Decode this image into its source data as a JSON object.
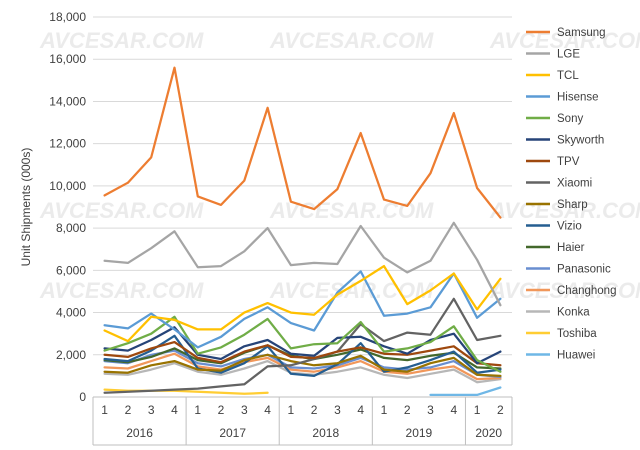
{
  "chart_data": {
    "type": "line",
    "title": "",
    "xlabel": "",
    "ylabel": "Unit Shipments (000s)",
    "ylim": [
      0,
      18000
    ],
    "yticks": [
      "0",
      "2,000",
      "4,000",
      "6,000",
      "8,000",
      "10,000",
      "12,000",
      "14,000",
      "16,000",
      "18,000"
    ],
    "grid": true,
    "legend_position": "right",
    "watermark": "AVCESAR.COM",
    "categories": [
      "2016 Q1",
      "2016 Q2",
      "2016 Q3",
      "2016 Q4",
      "2017 Q1",
      "2017 Q2",
      "2017 Q3",
      "2017 Q4",
      "2018 Q1",
      "2018 Q2",
      "2018 Q3",
      "2018 Q4",
      "2019 Q1",
      "2019 Q2",
      "2019 Q3",
      "2019 Q4",
      "2020 Q1",
      "2020 Q2"
    ],
    "quarter_labels": [
      "1",
      "2",
      "3",
      "4",
      "1",
      "2",
      "3",
      "4",
      "1",
      "2",
      "3",
      "4",
      "1",
      "2",
      "3",
      "4",
      "1",
      "2"
    ],
    "years": [
      {
        "label": "2016",
        "span": 4
      },
      {
        "label": "2017",
        "span": 4
      },
      {
        "label": "2018",
        "span": 4
      },
      {
        "label": "2019",
        "span": 4
      },
      {
        "label": "2020",
        "span": 2
      }
    ],
    "series": [
      {
        "name": "Samsung",
        "color": "#ed7d31",
        "values": [
          9550,
          10150,
          11350,
          15600,
          9500,
          9100,
          10250,
          13700,
          9250,
          8900,
          9850,
          12500,
          9350,
          9050,
          10600,
          13450,
          9900,
          8500
        ]
      },
      {
        "name": "LGE",
        "color": "#a5a5a5",
        "values": [
          6450,
          6350,
          7050,
          7850,
          6150,
          6200,
          6900,
          8000,
          6250,
          6350,
          6300,
          8100,
          6600,
          5900,
          6450,
          8250,
          6500,
          4350
        ]
      },
      {
        "name": "TCL",
        "color": "#ffc000",
        "values": [
          3150,
          2650,
          3800,
          3650,
          3200,
          3200,
          4000,
          4450,
          4000,
          3900,
          4850,
          5500,
          6200,
          4400,
          5050,
          5850,
          4150,
          5600
        ]
      },
      {
        "name": "Hisense",
        "color": "#5b9bd5",
        "values": [
          3400,
          3250,
          3950,
          3200,
          2350,
          2850,
          3700,
          4250,
          3500,
          3150,
          4950,
          5950,
          3850,
          3950,
          4250,
          5850,
          3750,
          4650
        ]
      },
      {
        "name": "Sony",
        "color": "#70ad47",
        "values": [
          2200,
          2550,
          3000,
          3800,
          2050,
          2350,
          2950,
          3700,
          2300,
          2500,
          2550,
          3550,
          2150,
          2300,
          2600,
          3350,
          1750,
          1200
        ]
      },
      {
        "name": "Skyworth",
        "color": "#264478",
        "values": [
          2300,
          2200,
          2700,
          3300,
          2000,
          1800,
          2400,
          2700,
          2050,
          1950,
          2800,
          2850,
          2400,
          2050,
          2700,
          3000,
          1600,
          2150
        ]
      },
      {
        "name": "TPV",
        "color": "#9e480e",
        "values": [
          2000,
          1900,
          2300,
          2600,
          1850,
          1650,
          2150,
          2450,
          1900,
          1850,
          2150,
          2350,
          2050,
          2000,
          2200,
          2400,
          1600,
          1500
        ]
      },
      {
        "name": "Xiaomi",
        "color": "#636363",
        "values": [
          200,
          250,
          300,
          350,
          400,
          500,
          600,
          1450,
          1500,
          1800,
          2150,
          3450,
          2650,
          3050,
          2950,
          4650,
          2700,
          2900
        ]
      },
      {
        "name": "Sharp",
        "color": "#997300",
        "values": [
          1200,
          1150,
          1500,
          1700,
          1300,
          1250,
          1750,
          2000,
          1700,
          1500,
          1600,
          1950,
          1300,
          1200,
          1600,
          1850,
          1050,
          1000
        ]
      },
      {
        "name": "Vizio",
        "color": "#255e91",
        "values": [
          1800,
          1700,
          2200,
          2900,
          1350,
          1150,
          1600,
          2400,
          1100,
          1000,
          1550,
          2550,
          1200,
          1400,
          1750,
          2150,
          1150,
          1300
        ]
      },
      {
        "name": "Haier",
        "color": "#43682b",
        "values": [
          1750,
          1650,
          1900,
          2300,
          1750,
          1600,
          2100,
          2450,
          1950,
          1800,
          2000,
          2250,
          1850,
          1750,
          1950,
          2100,
          1400,
          1350
        ]
      },
      {
        "name": "Panasonic",
        "color": "#698ed0",
        "values": [
          1700,
          1600,
          2000,
          2200,
          1600,
          1450,
          1800,
          2000,
          1400,
          1350,
          1500,
          1850,
          1400,
          1300,
          1400,
          1700,
          1050,
          950
        ]
      },
      {
        "name": "Changhong",
        "color": "#f1975a",
        "values": [
          1400,
          1350,
          1700,
          2050,
          1450,
          1300,
          1650,
          1850,
          1300,
          1200,
          1400,
          1700,
          1200,
          1100,
          1300,
          1450,
          850,
          900
        ]
      },
      {
        "name": "Konka",
        "color": "#b7b7b7",
        "values": [
          1100,
          1050,
          1300,
          1600,
          1200,
          1050,
          1350,
          1700,
          1150,
          1050,
          1200,
          1400,
          1050,
          900,
          1100,
          1300,
          700,
          850
        ]
      },
      {
        "name": "Toshiba",
        "color": "#ffcd33",
        "values": [
          350,
          300,
          300,
          300,
          250,
          200,
          150,
          200,
          null,
          null,
          null,
          null,
          null,
          null,
          null,
          null,
          null,
          null
        ]
      },
      {
        "name": "Huawei",
        "color": "#6fb7e6",
        "values": [
          null,
          null,
          null,
          null,
          null,
          null,
          null,
          null,
          null,
          null,
          null,
          null,
          null,
          null,
          100,
          100,
          100,
          450
        ]
      }
    ]
  }
}
